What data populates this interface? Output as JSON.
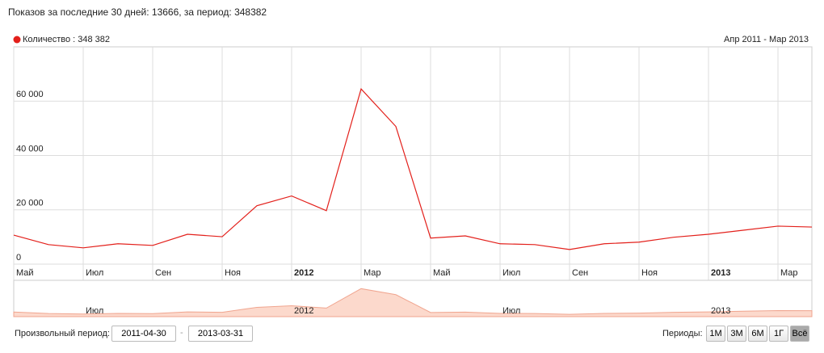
{
  "header": {
    "summary": "Показов за последние 30 дней: 13666, за период: 348382"
  },
  "chart_data": {
    "type": "line",
    "range_label": "Апр 2011 - Мар 2013",
    "categories": [
      "Май",
      null,
      "Июл",
      null,
      "Сен",
      null,
      "Ноя",
      null,
      "2012",
      null,
      "Мар",
      null,
      "Май",
      null,
      "Июл",
      null,
      "Сен",
      null,
      "Ноя",
      null,
      "2013",
      null,
      "Мар",
      null
    ],
    "series": [
      {
        "name": "Количество : 348 382",
        "color": "#e3201b",
        "values": [
          10700,
          7200,
          6000,
          7500,
          6900,
          11000,
          10100,
          21500,
          25100,
          19700,
          64500,
          50700,
          9600,
          10400,
          7500,
          7200,
          5400,
          7500,
          8100,
          9900,
          11000,
          12500,
          14000,
          13666
        ]
      }
    ],
    "ylim": [
      0,
      80000
    ],
    "yticks": [
      0,
      {
        "value": 20000,
        "label": "20 000"
      },
      {
        "value": 40000,
        "label": "40 000"
      },
      {
        "value": 60000,
        "label": "60 000"
      }
    ],
    "grid": true
  },
  "controls": {
    "custom_period_label": "Произвольный период:",
    "date_from": "2011-04-30",
    "date_separator": "-",
    "date_to": "2013-03-31",
    "periods_label": "Периоды:",
    "periods": [
      "1М",
      "3М",
      "6М",
      "1Г",
      "Всё"
    ],
    "active_period": 4
  }
}
